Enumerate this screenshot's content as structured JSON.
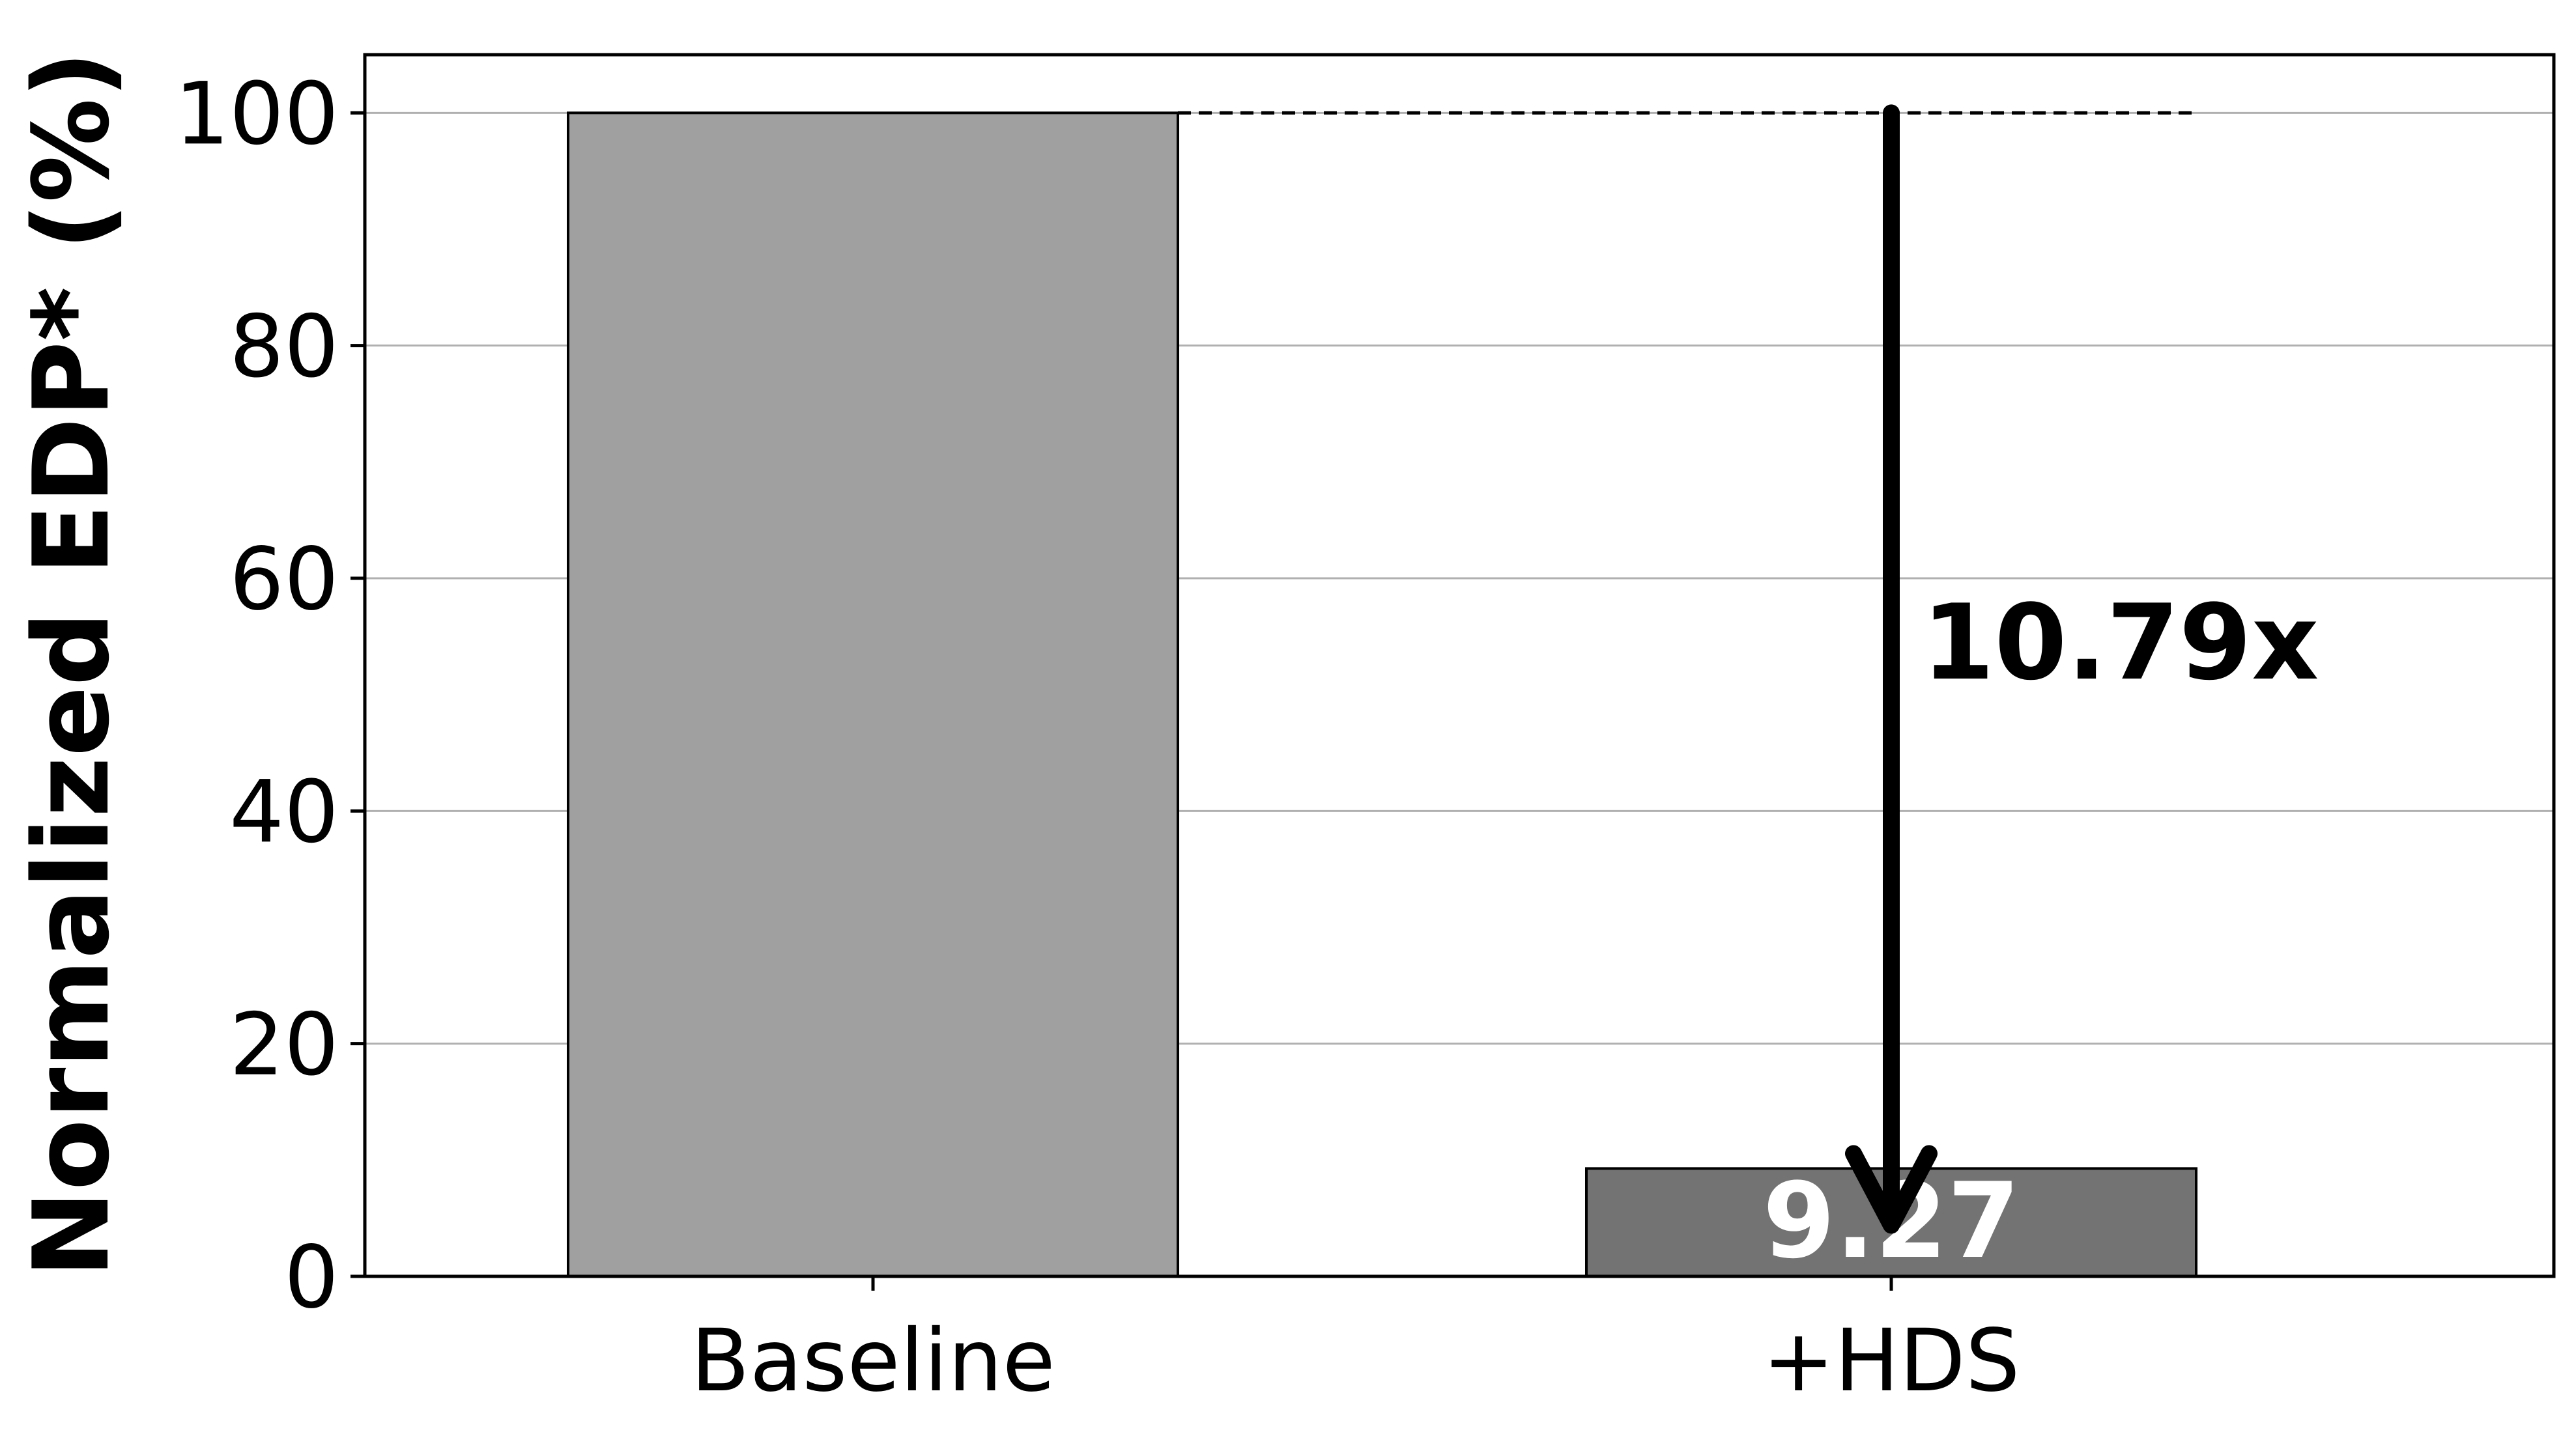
{
  "chart_data": {
    "type": "bar",
    "categories": [
      "Baseline",
      "+HDS"
    ],
    "values": [
      100,
      9.27
    ],
    "bar_colors": [
      "#a0a0a0",
      "#737373"
    ],
    "data_labels": [
      "",
      "9.27"
    ],
    "data_label_color": "#ffffff",
    "ylabel": "Normalized EDP* (%)",
    "xlabel": "",
    "title": "",
    "ylim": [
      0,
      105
    ],
    "yticks": [
      "0",
      "20",
      "40",
      "60",
      "80",
      "100"
    ],
    "grid": "y",
    "reference_line": {
      "y": 100,
      "style": "dashed",
      "from_category": 0,
      "to_category": 1
    },
    "annotation": {
      "text": "10.79x",
      "arrow_from_y": 100,
      "arrow_to_y": 11
    }
  }
}
